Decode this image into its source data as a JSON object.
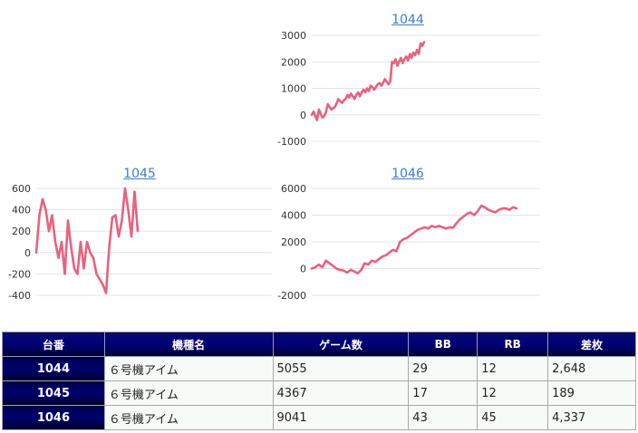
{
  "colors": {
    "line": "#e8627f",
    "link": "#3f7dc8",
    "header_bg": "#00006e"
  },
  "chart_data": [
    {
      "type": "line",
      "title": "1044",
      "ylim": [
        -1000,
        3000
      ],
      "yticks": [
        "3000",
        "2000",
        "1000",
        "0",
        "-1000"
      ],
      "ytick_values": [
        3000,
        2000,
        1000,
        0,
        -1000
      ],
      "series": [
        {
          "values": [
            0,
            120,
            -50,
            -200,
            200,
            50,
            -100,
            -50,
            100,
            400,
            300,
            200,
            250,
            300,
            450,
            600,
            500,
            450,
            550,
            600,
            750,
            650,
            800,
            700,
            600,
            750,
            850,
            700,
            850,
            950,
            850,
            1000,
            900,
            1100,
            1050,
            950,
            1050,
            1150,
            1200,
            1100,
            1200,
            1350,
            1250,
            1150,
            1250,
            2000,
            1950,
            2100,
            1850,
            2000,
            2150,
            1950,
            2100,
            2200,
            2050,
            2300,
            2150,
            2350,
            2250,
            2450,
            2300,
            2700,
            2600,
            2750
          ]
        }
      ]
    },
    {
      "type": "line",
      "title": "1045",
      "ylim": [
        -400,
        600
      ],
      "yticks": [
        "600",
        "400",
        "200",
        "0",
        "-200",
        "-400"
      ],
      "ytick_values": [
        600,
        400,
        200,
        0,
        -200,
        -400
      ],
      "series": [
        {
          "values": [
            0,
            350,
            500,
            400,
            200,
            350,
            100,
            -50,
            100,
            -200,
            300,
            50,
            -150,
            -200,
            100,
            -150,
            100,
            0,
            -50,
            -200,
            -250,
            -300,
            -380,
            50,
            330,
            350,
            150,
            300,
            600,
            400,
            150,
            570,
            200
          ]
        }
      ]
    },
    {
      "type": "line",
      "title": "1046",
      "ylim": [
        -2000,
        6000
      ],
      "yticks": [
        "6000",
        "4000",
        "2000",
        "0",
        "-2000"
      ],
      "ytick_values": [
        6000,
        4000,
        2000,
        0,
        -2000
      ],
      "series": [
        {
          "values": [
            0,
            100,
            300,
            100,
            600,
            400,
            200,
            0,
            -100,
            -150,
            -300,
            -100,
            -200,
            -350,
            -100,
            400,
            300,
            600,
            500,
            700,
            900,
            1000,
            1200,
            1400,
            1300,
            2000,
            2200,
            2300,
            2500,
            2700,
            2900,
            3000,
            3100,
            3000,
            3200,
            3100,
            3200,
            3100,
            3000,
            3100,
            3050,
            3400,
            3700,
            3900,
            4100,
            4200,
            4000,
            4300,
            4700,
            4600,
            4400,
            4300,
            4200,
            4400,
            4500,
            4500,
            4400,
            4600,
            4500
          ]
        }
      ]
    }
  ],
  "table": {
    "headers": [
      "台番",
      "機種名",
      "ゲーム数",
      "BB",
      "RB",
      "差枚"
    ],
    "rows": [
      {
        "num": "1044",
        "name": "６号機アイム",
        "games": "5055",
        "bb": "29",
        "rb": "12",
        "diff": "2,648"
      },
      {
        "num": "1045",
        "name": "６号機アイム",
        "games": "4367",
        "bb": "17",
        "rb": "12",
        "diff": "189"
      },
      {
        "num": "1046",
        "name": "６号機アイム",
        "games": "9041",
        "bb": "43",
        "rb": "45",
        "diff": "4,337"
      }
    ]
  }
}
